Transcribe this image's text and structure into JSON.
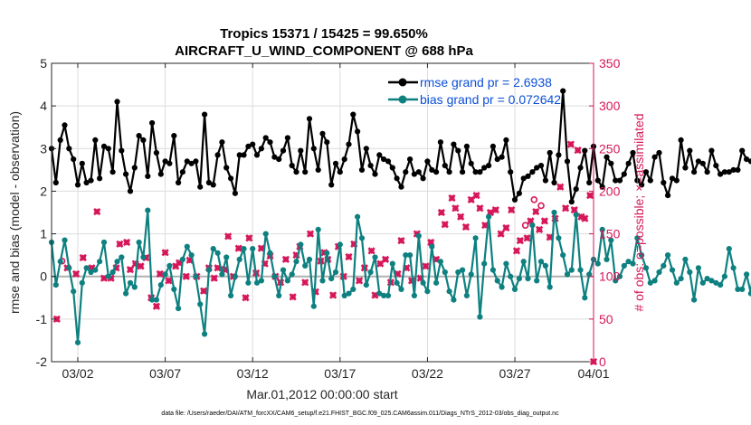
{
  "chart_data": {
    "type": "line",
    "title_line1": "Tropics 15371 / 15425 = 99.650%",
    "title_line2": "AIRCRAFT_U_WIND_COMPONENT @ 688 hPa",
    "ylabel_left": "rmse and bias (model - observation)",
    "ylabel_right": "# of obs: o=possible; ×=assimilated",
    "xlabel": "Mar.01,2012 00:00:00 start",
    "footer": "data file: /Users/raeder/DAI/ATM_forcXX/CAM6_setup/f.e21.FHIST_BGC.f09_025.CAM6assim.011/Diags_NTrS_2012-03/obs_diag_output.nc",
    "x_range": [
      0.5,
      31.5
    ],
    "ylim_left": [
      -2,
      5
    ],
    "ylim_right": [
      0,
      350
    ],
    "x_ticks": [
      {
        "x": 2,
        "label": "03/02"
      },
      {
        "x": 7,
        "label": "03/07"
      },
      {
        "x": 12,
        "label": "03/12"
      },
      {
        "x": 17,
        "label": "03/17"
      },
      {
        "x": 22,
        "label": "03/22"
      },
      {
        "x": 27,
        "label": "03/27"
      },
      {
        "x": 31.5,
        "label": "04/01"
      }
    ],
    "y_ticks_left": [
      {
        "v": -2,
        "label": "-2"
      },
      {
        "v": -1,
        "label": "-1"
      },
      {
        "v": 0,
        "label": "0"
      },
      {
        "v": 1,
        "label": "1"
      },
      {
        "v": 2,
        "label": "2"
      },
      {
        "v": 3,
        "label": "3"
      },
      {
        "v": 4,
        "label": "4"
      },
      {
        "v": 5,
        "label": "5"
      }
    ],
    "y_ticks_right": [
      {
        "v": 0,
        "label": "0"
      },
      {
        "v": 50,
        "label": "50"
      },
      {
        "v": 100,
        "label": "100"
      },
      {
        "v": 150,
        "label": "150"
      },
      {
        "v": 200,
        "label": "200"
      },
      {
        "v": 250,
        "label": "250"
      },
      {
        "v": 300,
        "label": "300"
      },
      {
        "v": 350,
        "label": "350"
      }
    ],
    "zero_line": 0,
    "x_start": 0.5,
    "x_step": 0.25,
    "series": [
      {
        "name": "rmse",
        "legend": "rmse grand pr = 2.6938",
        "color": "#000000",
        "values": [
          3.0,
          2.2,
          3.2,
          3.55,
          3.0,
          2.75,
          2.15,
          2.65,
          2.2,
          2.25,
          3.2,
          2.3,
          3.05,
          3.0,
          2.45,
          4.1,
          2.95,
          2.4,
          2.0,
          2.55,
          3.3,
          3.2,
          2.35,
          3.6,
          2.9,
          2.4,
          2.7,
          2.65,
          3.3,
          2.2,
          2.45,
          2.7,
          2.65,
          2.7,
          2.1,
          3.8,
          2.2,
          2.15,
          2.85,
          3.15,
          2.55,
          2.3,
          1.95,
          2.85,
          2.85,
          3.05,
          3.1,
          2.85,
          3.0,
          3.25,
          3.15,
          2.8,
          2.75,
          2.95,
          3.25,
          2.6,
          2.45,
          2.95,
          2.45,
          3.7,
          3.0,
          2.5,
          3.35,
          3.15,
          2.15,
          2.65,
          2.45,
          2.75,
          3.1,
          3.8,
          3.4,
          2.5,
          3.0,
          2.6,
          2.4,
          2.85,
          2.75,
          2.7,
          2.55,
          2.3,
          2.1,
          2.45,
          2.75,
          2.4,
          2.45,
          2.3,
          2.7,
          2.5,
          2.45,
          3.15,
          2.6,
          2.45,
          3.1,
          2.95,
          2.45,
          3.05,
          2.65,
          2.45,
          2.45,
          2.55,
          2.6,
          3.05,
          2.75,
          2.8,
          3.2,
          2.45,
          1.8,
          1.95,
          2.3,
          2.35,
          2.45,
          2.55,
          2.6,
          2.25,
          2.9,
          2.2,
          2.85,
          4.35,
          2.7,
          1.75,
          2.05,
          2.55,
          2.95,
          2.2,
          3.05,
          2.25,
          2.1,
          2.8,
          2.65,
          2.25,
          2.25,
          2.4,
          2.65,
          2.9,
          2.25,
          2.15,
          2.45,
          2.25,
          2.8,
          2.9,
          2.2,
          1.9,
          2.3,
          2.25,
          3.2,
          2.55,
          2.95,
          2.45,
          2.7,
          2.65,
          2.45,
          2.95,
          2.6,
          2.4,
          2.45,
          2.45,
          2.5,
          2.5,
          2.95,
          2.75,
          2.7,
          2.9,
          2.75,
          2.85
        ]
      },
      {
        "name": "bias",
        "legend": "bias grand pr = 0.072642",
        "color": "#0e8080",
        "values": [
          0.8,
          -0.2,
          0.35,
          0.85,
          0.2,
          -0.35,
          -1.55,
          -0.15,
          0.2,
          0.1,
          0.15,
          0.35,
          0.8,
          0.0,
          0.1,
          0.35,
          0.45,
          -0.4,
          -0.15,
          -0.25,
          0.8,
          0.45,
          1.55,
          -0.55,
          -0.55,
          -0.2,
          0.05,
          0.25,
          -0.3,
          -0.75,
          0.4,
          0.7,
          0.5,
          0.0,
          -0.65,
          -1.35,
          0.15,
          0.65,
          0.55,
          0.05,
          0.45,
          -0.45,
          0.0,
          0.4,
          0.65,
          -0.15,
          0.65,
          -0.15,
          -0.1,
          1.0,
          0.55,
          0.0,
          -0.45,
          0.15,
          -0.1,
          0.05,
          0.35,
          0.75,
          0.25,
          0.4,
          -0.7,
          1.1,
          -0.1,
          0.55,
          -0.05,
          0.1,
          0.75,
          -0.45,
          -0.4,
          -0.3,
          1.4,
          0.9,
          -0.2,
          0.1,
          0.45,
          -0.4,
          -0.45,
          -0.45,
          0.3,
          -0.15,
          -0.3,
          0.5,
          0.5,
          -0.45,
          0.95,
          -0.15,
          -0.35,
          0.7,
          -0.15,
          0.35,
          0.1,
          -0.35,
          -0.55,
          0.1,
          0.15,
          -0.45,
          0.05,
          0.9,
          -0.95,
          0.3,
          1.4,
          0.15,
          -0.1,
          -0.25,
          0.3,
          0.0,
          -0.3,
          -0.05,
          0.35,
          -0.05,
          1.2,
          -0.1,
          0.35,
          0.25,
          -0.25,
          1.5,
          0.9,
          0.5,
          0.05,
          0.15,
          1.45,
          0.15,
          -0.5,
          0.05,
          0.4,
          0.3,
          1.1,
          0.4,
          0.85,
          -0.1,
          0.0,
          0.25,
          0.35,
          0.3,
          0.9,
          0.5,
          0.2,
          -0.15,
          -0.1,
          0.1,
          0.25,
          0.5,
          0.15,
          -0.15,
          -0.05,
          0.4,
          0.1,
          -0.55,
          0.2,
          -0.15,
          -0.05,
          -0.1,
          -0.15,
          -0.2,
          0.0,
          0.65,
          0.2,
          -0.3,
          -0.3,
          0.05,
          -0.4,
          0.7,
          0.45,
          0.25,
          0.0,
          -0.35
        ]
      }
    ],
    "obs_possible": {
      "color": "#d6175a",
      "points": [
        {
          "x": 1.1,
          "y": 118
        },
        {
          "x": 28.1,
          "y": 190
        },
        {
          "x": 28.5,
          "y": 183
        },
        {
          "x": 27.6,
          "y": 160
        }
      ]
    },
    "obs_assimilated": {
      "color": "#d6175a",
      "points": [
        [
          0.8,
          50
        ],
        [
          1.4,
          110
        ],
        [
          1.9,
          103
        ],
        [
          2.3,
          122
        ],
        [
          2.8,
          110
        ],
        [
          3.1,
          176
        ],
        [
          3.5,
          98
        ],
        [
          3.9,
          98
        ],
        [
          4.2,
          110
        ],
        [
          4.4,
          138
        ],
        [
          4.8,
          140
        ],
        [
          5.0,
          108
        ],
        [
          5.3,
          115
        ],
        [
          5.6,
          112
        ],
        [
          5.9,
          122
        ],
        [
          6.2,
          75
        ],
        [
          6.5,
          65
        ],
        [
          6.7,
          103
        ],
        [
          7.0,
          128
        ],
        [
          7.2,
          95
        ],
        [
          7.6,
          112
        ],
        [
          7.8,
          116
        ],
        [
          8.2,
          100
        ],
        [
          8.4,
          119
        ],
        [
          8.8,
          100
        ],
        [
          9.2,
          83
        ],
        [
          9.5,
          110
        ],
        [
          9.8,
          98
        ],
        [
          10.0,
          110
        ],
        [
          10.4,
          108
        ],
        [
          10.6,
          147
        ],
        [
          10.9,
          100
        ],
        [
          11.2,
          133
        ],
        [
          11.6,
          75
        ],
        [
          11.8,
          145
        ],
        [
          12.2,
          104
        ],
        [
          12.5,
          133
        ],
        [
          12.7,
          115
        ],
        [
          13.0,
          124
        ],
        [
          13.3,
          100
        ],
        [
          13.6,
          93
        ],
        [
          13.9,
          120
        ],
        [
          14.3,
          76
        ],
        [
          14.5,
          125
        ],
        [
          14.7,
          135
        ],
        [
          15.0,
          93
        ],
        [
          15.3,
          150
        ],
        [
          15.6,
          82
        ],
        [
          15.9,
          118
        ],
        [
          16.1,
          128
        ],
        [
          16.3,
          120
        ],
        [
          16.6,
          78
        ],
        [
          16.9,
          135
        ],
        [
          17.2,
          100
        ],
        [
          17.5,
          123
        ],
        [
          17.8,
          138
        ],
        [
          18.1,
          95
        ],
        [
          18.4,
          110
        ],
        [
          18.8,
          130
        ],
        [
          19.0,
          78
        ],
        [
          19.3,
          115
        ],
        [
          19.6,
          120
        ],
        [
          19.9,
          93
        ],
        [
          20.3,
          103
        ],
        [
          20.5,
          142
        ],
        [
          20.8,
          110
        ],
        [
          21.1,
          95
        ],
        [
          21.4,
          150
        ],
        [
          21.6,
          98
        ],
        [
          21.9,
          112
        ],
        [
          22.2,
          140
        ],
        [
          22.5,
          120
        ],
        [
          22.8,
          175
        ],
        [
          23.0,
          161
        ],
        [
          23.4,
          192
        ],
        [
          23.6,
          180
        ],
        [
          23.9,
          170
        ],
        [
          24.2,
          158
        ],
        [
          24.5,
          190
        ],
        [
          24.8,
          195
        ],
        [
          25.0,
          180
        ],
        [
          25.3,
          160
        ],
        [
          25.6,
          175
        ],
        [
          25.9,
          178
        ],
        [
          26.2,
          150
        ],
        [
          26.5,
          157
        ],
        [
          26.8,
          178
        ],
        [
          27.1,
          130
        ],
        [
          27.3,
          142
        ],
        [
          27.7,
          145
        ],
        [
          27.9,
          165
        ],
        [
          28.2,
          176
        ],
        [
          28.4,
          155
        ],
        [
          28.7,
          165
        ],
        [
          29.0,
          146
        ],
        [
          29.3,
          168
        ],
        [
          29.6,
          205
        ],
        [
          29.9,
          180
        ],
        [
          30.2,
          255
        ],
        [
          30.4,
          178
        ],
        [
          30.6,
          248
        ],
        [
          30.8,
          170
        ],
        [
          31.0,
          168
        ],
        [
          31.3,
          195
        ],
        [
          31.5,
          0
        ]
      ]
    }
  }
}
